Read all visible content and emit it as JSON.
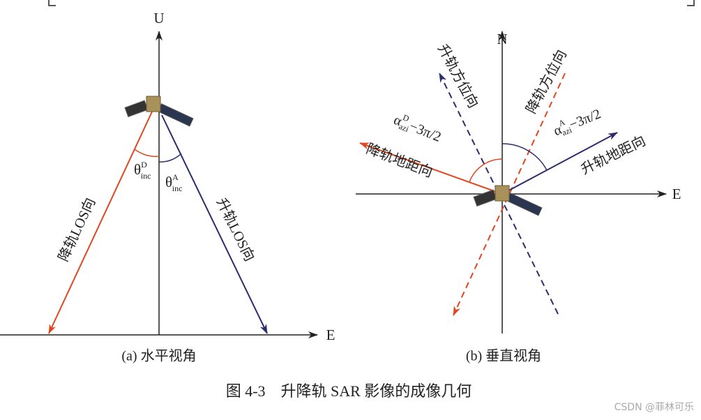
{
  "left_panel": {
    "axis_up": "U",
    "axis_east": "E",
    "angle_descending": {
      "base": "θ",
      "sup": "D",
      "sub": "inc"
    },
    "angle_ascending": {
      "base": "θ",
      "sup": "A",
      "sub": "inc"
    },
    "descending_los": "降轨LOS向",
    "ascending_los": "升轨LOS向",
    "caption": "(a) 水平视角"
  },
  "right_panel": {
    "axis_north": "N",
    "axis_east": "E",
    "ascending_azimuth": "升轨方位向",
    "descending_azimuth": "降轨方位向",
    "angle_descending": {
      "base": "α",
      "sup": "D",
      "sub": "azi",
      "rest": "−3π/2"
    },
    "angle_ascending": {
      "base": "α",
      "sup": "A",
      "sub": "azi",
      "rest": "−3π/2"
    },
    "descending_range": "降轨地距向",
    "ascending_range": "升轨地距向",
    "caption": "(b) 垂直视角"
  },
  "figure_caption": "图 4-3　升降轨 SAR 影像的成像几何",
  "watermark": "CSDN @菲林可乐"
}
